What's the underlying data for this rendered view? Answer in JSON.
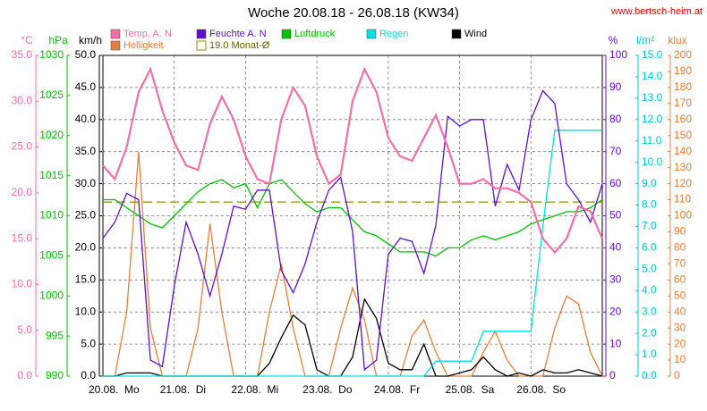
{
  "chart_data": {
    "type": "line",
    "title": "Woche 20.08.18 - 26.08.18 (KW34)",
    "source": "www.bertsch-heim.at",
    "grid": true,
    "x": [
      0,
      4,
      8,
      12,
      16,
      20,
      24,
      28,
      32,
      36,
      40,
      44,
      48,
      52,
      56,
      60,
      64,
      68,
      72,
      76,
      80,
      84,
      88,
      92,
      96,
      100,
      104,
      108,
      112,
      116,
      120,
      124,
      128,
      132,
      136,
      140,
      144,
      148,
      152,
      156,
      160,
      164,
      168
    ],
    "xlim": [
      0,
      168
    ],
    "xticks": [
      {
        "value": 0,
        "label": "20.08.  Mo"
      },
      {
        "value": 24,
        "label": "21.08.  Di"
      },
      {
        "value": 48,
        "label": "22.08.  Mi"
      },
      {
        "value": 72,
        "label": "23.08.  Do"
      },
      {
        "value": 96,
        "label": "24.08.  Fr"
      },
      {
        "value": 120,
        "label": "25.08.  Sa"
      },
      {
        "value": 144,
        "label": "26.08.  So"
      }
    ],
    "axes": [
      {
        "id": "temp",
        "unit": "°C",
        "color": "#f070a8",
        "lim": [
          0,
          35
        ],
        "ticks": [
          {
            "value": 0,
            "label": "0.0"
          },
          {
            "value": 5,
            "label": "5.0"
          },
          {
            "value": 10,
            "label": "10.0"
          },
          {
            "value": 15,
            "label": "15.0"
          },
          {
            "value": 20,
            "label": "20.0"
          },
          {
            "value": 25,
            "label": "25.0"
          },
          {
            "value": 30,
            "label": "30.0"
          },
          {
            "value": 35,
            "label": "35.0"
          }
        ]
      },
      {
        "id": "press",
        "unit": "hPa",
        "color": "#00c000",
        "lim": [
          990,
          1030
        ],
        "ticks": [
          990,
          995,
          1000,
          1005,
          1010,
          1015,
          1020,
          1025,
          1030
        ]
      },
      {
        "id": "wind",
        "unit": "km/h",
        "color": "#000000",
        "lim": [
          0,
          50
        ],
        "ticks": [
          {
            "value": 0,
            "label": "0.0"
          },
          {
            "value": 5,
            "label": "5.0"
          },
          {
            "value": 10,
            "label": "10.0"
          },
          {
            "value": 15,
            "label": "15.0"
          },
          {
            "value": 20,
            "label": "20.0"
          },
          {
            "value": 25,
            "label": "25.0"
          },
          {
            "value": 30,
            "label": "30.0"
          },
          {
            "value": 35,
            "label": "35.0"
          },
          {
            "value": 40,
            "label": "40.0"
          },
          {
            "value": 45,
            "label": "45.0"
          },
          {
            "value": 50,
            "label": "50.0"
          }
        ]
      },
      {
        "id": "hum",
        "unit": "%",
        "color": "#6010c8",
        "lim": [
          0,
          100
        ],
        "ticks": [
          0,
          10,
          20,
          30,
          40,
          50,
          60,
          70,
          80,
          90,
          100
        ]
      },
      {
        "id": "rain",
        "unit": "l/m²",
        "color": "#00c8c8",
        "lim": [
          0,
          15
        ],
        "ticks": [
          {
            "value": 0,
            "label": "0.0"
          },
          {
            "value": 1,
            "label": "1.0"
          },
          {
            "value": 2,
            "label": "2.0"
          },
          {
            "value": 3,
            "label": "3.0"
          },
          {
            "value": 4,
            "label": "4.0"
          },
          {
            "value": 5,
            "label": "5.0"
          },
          {
            "value": 6,
            "label": "6.0"
          },
          {
            "value": 7,
            "label": "7.0"
          },
          {
            "value": 8,
            "label": "8.0"
          },
          {
            "value": 9,
            "label": "9.0"
          },
          {
            "value": 10,
            "label": "10.0"
          },
          {
            "value": 11,
            "label": "11.0"
          },
          {
            "value": 12,
            "label": "12.0"
          },
          {
            "value": 13,
            "label": "13.0"
          },
          {
            "value": 14,
            "label": "14.0"
          },
          {
            "value": 15,
            "label": "15.0"
          }
        ]
      },
      {
        "id": "light",
        "unit": "klux",
        "color": "#e08040",
        "lim": [
          0,
          200
        ],
        "ticks": [
          0,
          10,
          20,
          30,
          40,
          50,
          60,
          70,
          80,
          90,
          100,
          110,
          120,
          130,
          140,
          150,
          160,
          170,
          180,
          190,
          200
        ]
      }
    ],
    "series": [
      {
        "name": "Temp. A. N",
        "color": "#f070a8",
        "axis": "temp",
        "values": [
          23,
          21.5,
          25,
          31,
          33.5,
          29,
          25.5,
          23,
          22.5,
          27.5,
          30.5,
          28,
          24,
          21.5,
          21,
          28,
          31.5,
          29.5,
          24,
          21,
          22,
          30,
          33.5,
          31,
          26,
          24,
          23.5,
          26,
          28.5,
          25,
          21,
          21,
          21.5,
          20.5,
          20.5,
          20,
          19,
          15,
          13.5,
          15,
          18.5,
          18,
          15
        ]
      },
      {
        "name": "Feuchte A. N",
        "color": "#6010c8",
        "axis": "hum",
        "values": [
          43,
          48,
          57,
          55,
          5,
          3,
          28,
          48,
          38,
          25,
          38,
          53,
          52,
          58,
          58,
          33,
          26,
          35,
          48,
          58,
          62,
          45,
          2,
          5,
          38,
          43,
          42,
          32,
          47,
          81,
          78,
          80,
          80,
          53,
          66,
          58,
          80,
          89,
          85,
          60,
          55,
          48,
          60
        ]
      },
      {
        "name": "Luftdruck",
        "color": "#00c000",
        "axis": "press",
        "values": [
          1012,
          1012,
          1011,
          1010,
          1009,
          1008.5,
          1010,
          1011.5,
          1013,
          1014,
          1014.5,
          1013.5,
          1014,
          1011,
          1014,
          1014.5,
          1013,
          1011.5,
          1010.5,
          1011,
          1011,
          1009.5,
          1008,
          1007.5,
          1006.5,
          1005.5,
          1005.5,
          1005.5,
          1005,
          1006,
          1006,
          1007,
          1007.5,
          1007,
          1007.5,
          1008,
          1009,
          1009.5,
          1010,
          1010.5,
          1010.5,
          1011,
          1012
        ]
      },
      {
        "name": "Regen",
        "color": "#00e0e0",
        "axis": "rain",
        "values": [
          0,
          0,
          0,
          0,
          0,
          0,
          0,
          0,
          0,
          0,
          0,
          0,
          0,
          0,
          0,
          0,
          0,
          0,
          0,
          0,
          0,
          0,
          0,
          0,
          0,
          0,
          0,
          0,
          0.7,
          0.7,
          0.7,
          0.7,
          2.1,
          2.1,
          2.1,
          2.1,
          2.1,
          7,
          11.5,
          11.5,
          11.5,
          11.5,
          11.5
        ]
      },
      {
        "name": "Wind",
        "color": "#000000",
        "axis": "wind",
        "values": [
          0,
          0,
          0.5,
          0.5,
          0.5,
          0,
          0,
          0,
          0,
          0,
          0,
          0,
          0,
          0,
          2,
          6,
          9.5,
          8,
          1,
          0,
          0,
          3,
          12,
          9,
          2,
          1,
          1,
          5,
          0,
          0,
          0.5,
          1,
          3,
          1,
          0,
          0.5,
          0,
          1,
          0.5,
          0.5,
          1,
          0.5,
          0
        ]
      },
      {
        "name": "Helligkeit",
        "color": "#e08040",
        "axis": "light",
        "values": [
          0,
          0,
          40,
          140,
          30,
          0,
          0,
          0,
          30,
          95,
          40,
          0,
          0,
          0,
          40,
          70,
          30,
          0,
          0,
          0,
          30,
          55,
          35,
          0,
          0,
          0,
          25,
          35,
          15,
          0,
          0,
          0,
          15,
          28,
          10,
          0,
          0,
          0,
          30,
          50,
          45,
          15,
          0
        ]
      }
    ],
    "reference": {
      "name": "19.0 Monat-Ø",
      "value": 19,
      "axis": "temp",
      "color": "#909000"
    }
  }
}
